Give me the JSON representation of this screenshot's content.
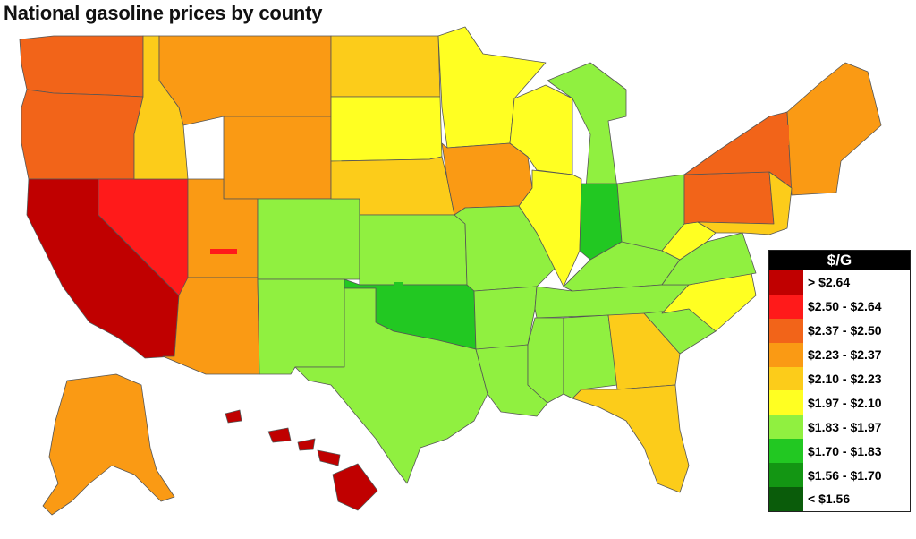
{
  "title": "National gasoline prices by county",
  "legend": {
    "title": "$/G",
    "items": [
      {
        "label": "> $2.64",
        "color": "#c00000"
      },
      {
        "label": "$2.50 - $2.64",
        "color": "#ff1a1a"
      },
      {
        "label": "$2.37 - $2.50",
        "color": "#f26419"
      },
      {
        "label": "$2.23 - $2.37",
        "color": "#fa9a14"
      },
      {
        "label": "$2.10 - $2.23",
        "color": "#fccc1a"
      },
      {
        "label": "$1.97 - $2.10",
        "color": "#ffff22"
      },
      {
        "label": "$1.83 - $1.97",
        "color": "#90f040"
      },
      {
        "label": "$1.70 - $1.83",
        "color": "#22c822"
      },
      {
        "label": "$1.56 - $1.70",
        "color": "#139613"
      },
      {
        "label": "< $1.56",
        "color": "#0a5c0a"
      }
    ]
  },
  "regions": [
    {
      "id": "washington",
      "color": "#f26419"
    },
    {
      "id": "oregon",
      "color": "#f26419"
    },
    {
      "id": "california",
      "color": "#c00000"
    },
    {
      "id": "nevada",
      "color": "#ff1a1a"
    },
    {
      "id": "idaho",
      "color": "#fccc1a"
    },
    {
      "id": "montana",
      "color": "#fa9a14"
    },
    {
      "id": "wyoming",
      "color": "#fa9a14"
    },
    {
      "id": "utah",
      "color": "#fa9a14"
    },
    {
      "id": "arizona",
      "color": "#fa9a14"
    },
    {
      "id": "colorado",
      "color": "#90f040"
    },
    {
      "id": "new-mexico",
      "color": "#90f040"
    },
    {
      "id": "north-dakota",
      "color": "#fccc1a"
    },
    {
      "id": "south-dakota",
      "color": "#ffff22"
    },
    {
      "id": "nebraska",
      "color": "#fccc1a"
    },
    {
      "id": "kansas",
      "color": "#90f040"
    },
    {
      "id": "oklahoma",
      "color": "#22c822"
    },
    {
      "id": "texas",
      "color": "#90f040"
    },
    {
      "id": "minnesota",
      "color": "#ffff22"
    },
    {
      "id": "iowa",
      "color": "#fa9a14"
    },
    {
      "id": "missouri",
      "color": "#90f040"
    },
    {
      "id": "arkansas",
      "color": "#90f040"
    },
    {
      "id": "louisiana",
      "color": "#90f040"
    },
    {
      "id": "wisconsin",
      "color": "#ffff22"
    },
    {
      "id": "illinois",
      "color": "#ffff22"
    },
    {
      "id": "michigan",
      "color": "#90f040"
    },
    {
      "id": "indiana",
      "color": "#22c822"
    },
    {
      "id": "ohio",
      "color": "#90f040"
    },
    {
      "id": "kentucky",
      "color": "#90f040"
    },
    {
      "id": "tennessee",
      "color": "#90f040"
    },
    {
      "id": "mississippi",
      "color": "#90f040"
    },
    {
      "id": "alabama",
      "color": "#90f040"
    },
    {
      "id": "georgia",
      "color": "#fccc1a"
    },
    {
      "id": "florida",
      "color": "#fccc1a"
    },
    {
      "id": "south-carolina",
      "color": "#90f040"
    },
    {
      "id": "north-carolina",
      "color": "#ffff22"
    },
    {
      "id": "virginia",
      "color": "#90f040"
    },
    {
      "id": "west-virginia",
      "color": "#ffff22"
    },
    {
      "id": "pennsylvania",
      "color": "#f26419"
    },
    {
      "id": "new-york",
      "color": "#f26419"
    },
    {
      "id": "new-england",
      "color": "#fa9a14"
    },
    {
      "id": "mid-atlantic",
      "color": "#fccc1a"
    },
    {
      "id": "alaska",
      "color": "#fa9a14"
    },
    {
      "id": "hawaii",
      "color": "#c00000"
    }
  ]
}
